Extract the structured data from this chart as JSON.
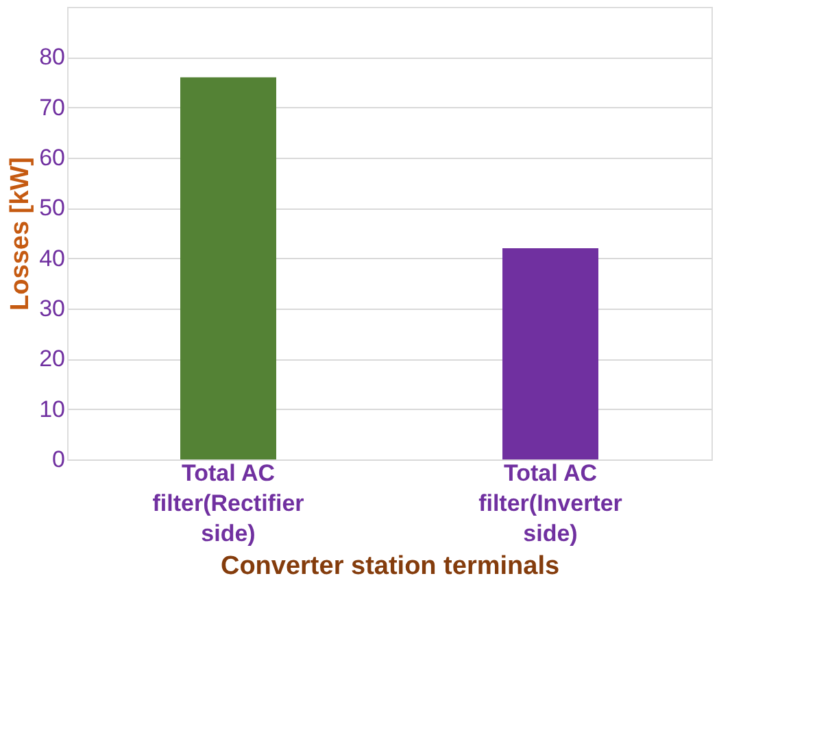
{
  "chart_data": {
    "type": "bar",
    "categories": [
      "Total AC filter(Rectifier side)",
      "Total AC filter(Inverter side)"
    ],
    "values": [
      76,
      42
    ],
    "colors": [
      "#548235",
      "#7030a0"
    ],
    "xlabel": "Converter station terminals",
    "ylabel": "Losses [kW]",
    "ylim": [
      0,
      90
    ],
    "yticks": [
      0,
      10,
      20,
      30,
      40,
      50,
      60,
      70,
      80
    ],
    "grid": "y"
  }
}
